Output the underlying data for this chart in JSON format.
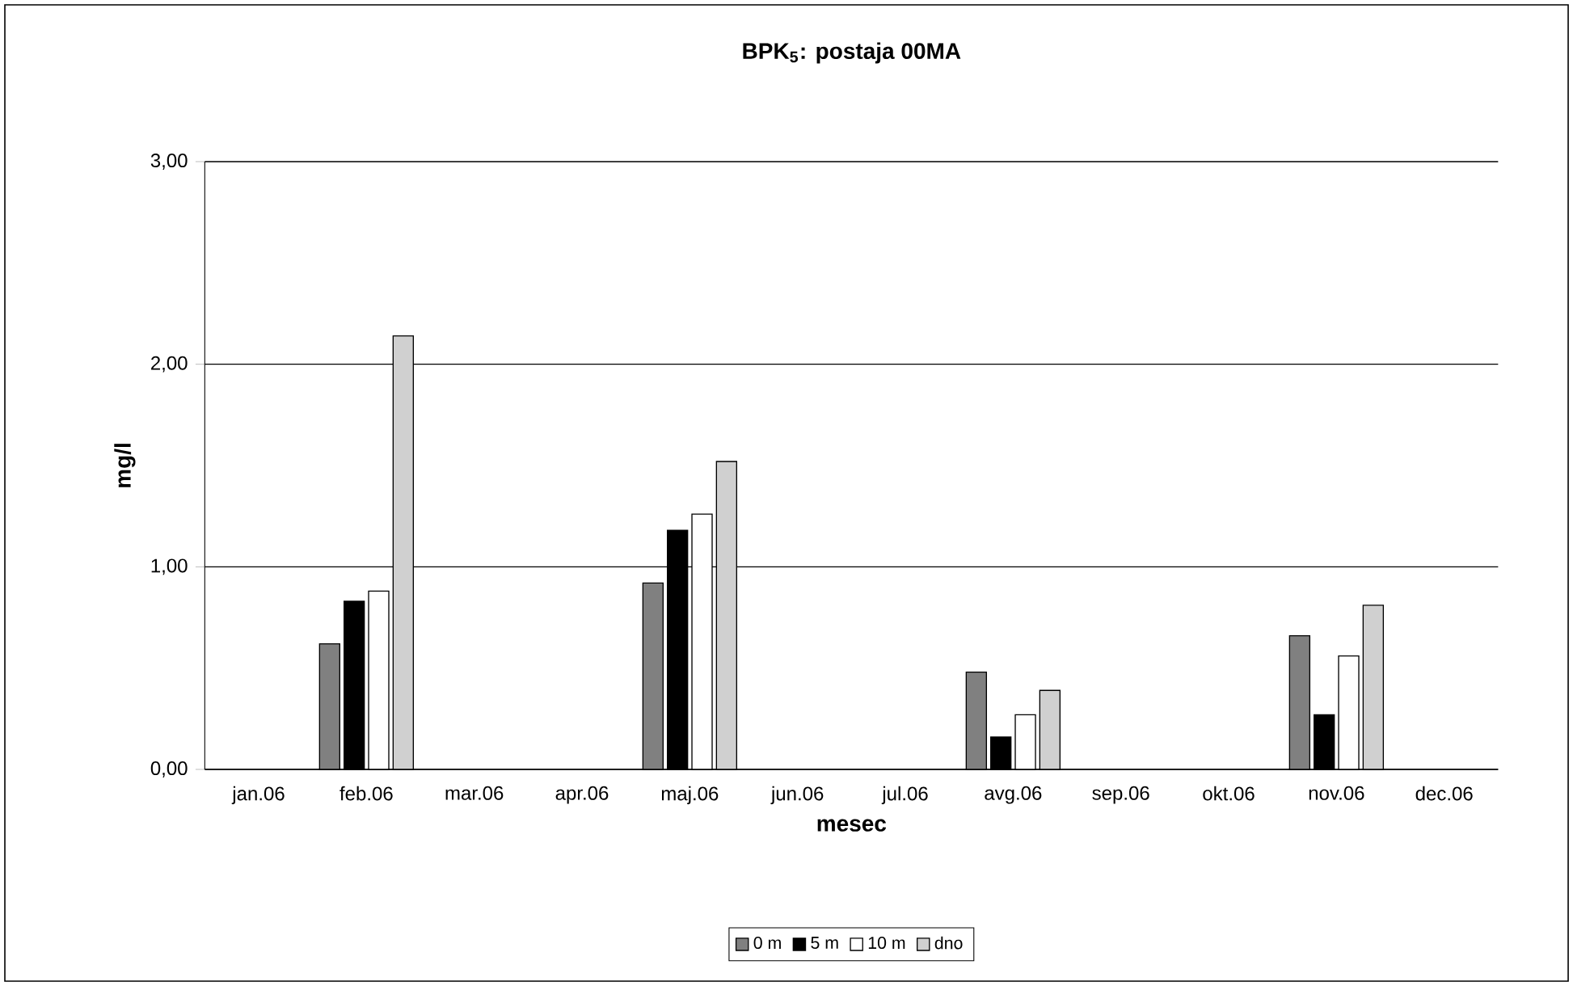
{
  "chart_data": {
    "type": "bar",
    "title": "BPK$_{5}$: postaja 00MA",
    "xlabel": "mesec",
    "ylabel": "mg/l",
    "categories": [
      "jan.06",
      "feb.06",
      "mar.06",
      "apr.06",
      "maj.06",
      "jun.06",
      "jul.06",
      "avg.06",
      "sep.06",
      "okt.06",
      "nov.06",
      "dec.06"
    ],
    "series": [
      {
        "name": "0 m",
        "color": "#808080",
        "values": [
          null,
          0.62,
          null,
          null,
          0.92,
          null,
          null,
          0.48,
          null,
          null,
          0.66,
          null
        ]
      },
      {
        "name": "5 m",
        "color": "#000000",
        "values": [
          null,
          0.83,
          null,
          null,
          1.18,
          null,
          null,
          0.16,
          null,
          null,
          0.27,
          null
        ]
      },
      {
        "name": "10 m",
        "color": "#ffffff",
        "values": [
          null,
          0.88,
          null,
          null,
          1.26,
          null,
          null,
          0.27,
          null,
          null,
          0.56,
          null
        ]
      },
      {
        "name": "dno",
        "color": "#d0d0d0",
        "values": [
          null,
          2.14,
          null,
          null,
          1.52,
          null,
          null,
          0.39,
          null,
          null,
          0.81,
          null
        ]
      }
    ],
    "ylim": [
      0,
      3
    ],
    "yticks": [
      {
        "value": 0,
        "label": "0,00"
      },
      {
        "value": 1,
        "label": "1,00"
      },
      {
        "value": 2,
        "label": "2,00"
      },
      {
        "value": 3,
        "label": "3,00"
      }
    ],
    "grid": "y",
    "legend": "bottom"
  }
}
